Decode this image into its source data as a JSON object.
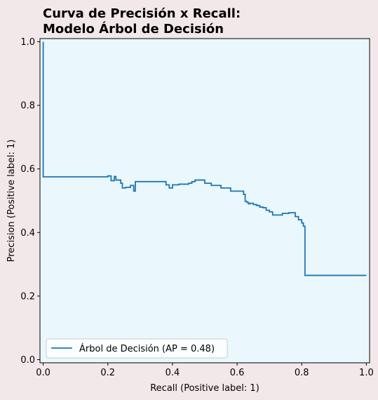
{
  "chart_data": {
    "type": "line",
    "title_line1": "Curva de Precisión x Recall:",
    "title_line2": "Modelo Árbol de Decisión",
    "xlabel": "Recall (Positive label: 1)",
    "ylabel": "Precision (Positive label: 1)",
    "xlim": [
      -0.01,
      1.01
    ],
    "ylim": [
      -0.01,
      1.01
    ],
    "xticks": [
      0.0,
      0.2,
      0.4,
      0.6,
      0.8,
      1.0
    ],
    "yticks": [
      0.0,
      0.2,
      0.4,
      0.6,
      0.8,
      1.0
    ],
    "xtick_labels": [
      "0.0",
      "0.2",
      "0.4",
      "0.6",
      "0.8",
      "1.0"
    ],
    "ytick_labels": [
      "0.0",
      "0.2",
      "0.4",
      "0.6",
      "0.8",
      "1.0"
    ],
    "drawstyle": "steps-post",
    "grid": false,
    "legend_position": "lower-left",
    "plot_background": "#eaf7fd",
    "series": [
      {
        "name": "Árbol de Decisión (AP = 0.48)",
        "color": "#1f77b4",
        "x": [
          0.0,
          0.0,
          0.0,
          0.2,
          0.21,
          0.22,
          0.225,
          0.24,
          0.245,
          0.255,
          0.27,
          0.28,
          0.285,
          0.32,
          0.38,
          0.39,
          0.4,
          0.42,
          0.45,
          0.46,
          0.47,
          0.5,
          0.52,
          0.55,
          0.56,
          0.58,
          0.61,
          0.62,
          0.625,
          0.63,
          0.635,
          0.64,
          0.65,
          0.66,
          0.67,
          0.68,
          0.69,
          0.7,
          0.71,
          0.72,
          0.73,
          0.74,
          0.76,
          0.78,
          0.79,
          0.8,
          0.805,
          0.81,
          0.81,
          1.0
        ],
        "y": [
          1.0,
          0.575,
          0.575,
          0.578,
          0.563,
          0.576,
          0.565,
          0.555,
          0.54,
          0.542,
          0.548,
          0.53,
          0.56,
          0.56,
          0.55,
          0.54,
          0.55,
          0.552,
          0.555,
          0.56,
          0.565,
          0.555,
          0.548,
          0.54,
          0.54,
          0.53,
          0.53,
          0.52,
          0.498,
          0.495,
          0.49,
          0.492,
          0.488,
          0.485,
          0.48,
          0.478,
          0.47,
          0.465,
          0.455,
          0.455,
          0.455,
          0.46,
          0.462,
          0.45,
          0.44,
          0.43,
          0.42,
          0.41,
          0.265,
          0.265
        ]
      }
    ]
  }
}
